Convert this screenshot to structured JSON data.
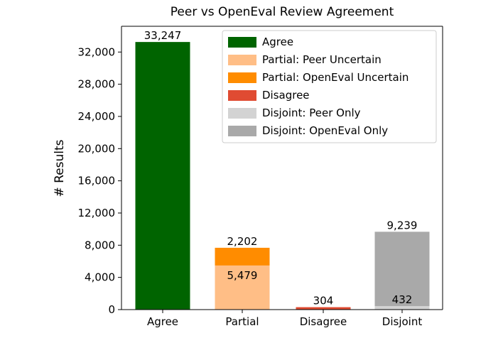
{
  "chart_data": {
    "type": "bar",
    "title": "Peer vs OpenEval Review Agreement",
    "xlabel": "",
    "ylabel": "# Results",
    "ylim": [
      0,
      35200
    ],
    "yticks": [
      0,
      4000,
      8000,
      12000,
      16000,
      20000,
      24000,
      28000,
      32000
    ],
    "ytick_labels": [
      "0",
      "4,000",
      "8,000",
      "12,000",
      "16,000",
      "20,000",
      "24,000",
      "28,000",
      "32,000"
    ],
    "categories": [
      "Agree",
      "Partial",
      "Disagree",
      "Disjoint"
    ],
    "grid": false,
    "stacked": true,
    "legend_position": "top-right",
    "series": [
      {
        "name": "Agree",
        "color": "#006400",
        "values": [
          33247,
          0,
          0,
          0
        ]
      },
      {
        "name": "Partial: Peer Uncertain",
        "color": "#FFBE86",
        "values": [
          0,
          5479,
          0,
          0
        ]
      },
      {
        "name": "Partial: OpenEval Uncertain",
        "color": "#FF8C00",
        "values": [
          0,
          2202,
          0,
          0
        ]
      },
      {
        "name": "Disagree",
        "color": "#E04B32",
        "values": [
          0,
          0,
          304,
          0
        ]
      },
      {
        "name": "Disjoint: Peer Only",
        "color": "#D3D3D3",
        "values": [
          0,
          0,
          0,
          432
        ]
      },
      {
        "name": "Disjoint: OpenEval Only",
        "color": "#A9A9A9",
        "values": [
          0,
          0,
          0,
          9239
        ]
      }
    ],
    "data_labels": [
      {
        "text": "33,247",
        "category": "Agree",
        "series": "Agree",
        "placement": "above"
      },
      {
        "text": "5,479",
        "category": "Partial",
        "series": "Partial: Peer Uncertain",
        "placement": "inside-top"
      },
      {
        "text": "2,202",
        "category": "Partial",
        "series": "Partial: OpenEval Uncertain",
        "placement": "above"
      },
      {
        "text": "304",
        "category": "Disagree",
        "series": "Disagree",
        "placement": "above"
      },
      {
        "text": "432",
        "category": "Disjoint",
        "series": "Disjoint: Peer Only",
        "placement": "above"
      },
      {
        "text": "9,239",
        "category": "Disjoint",
        "series": "Disjoint: OpenEval Only",
        "placement": "above"
      }
    ]
  }
}
